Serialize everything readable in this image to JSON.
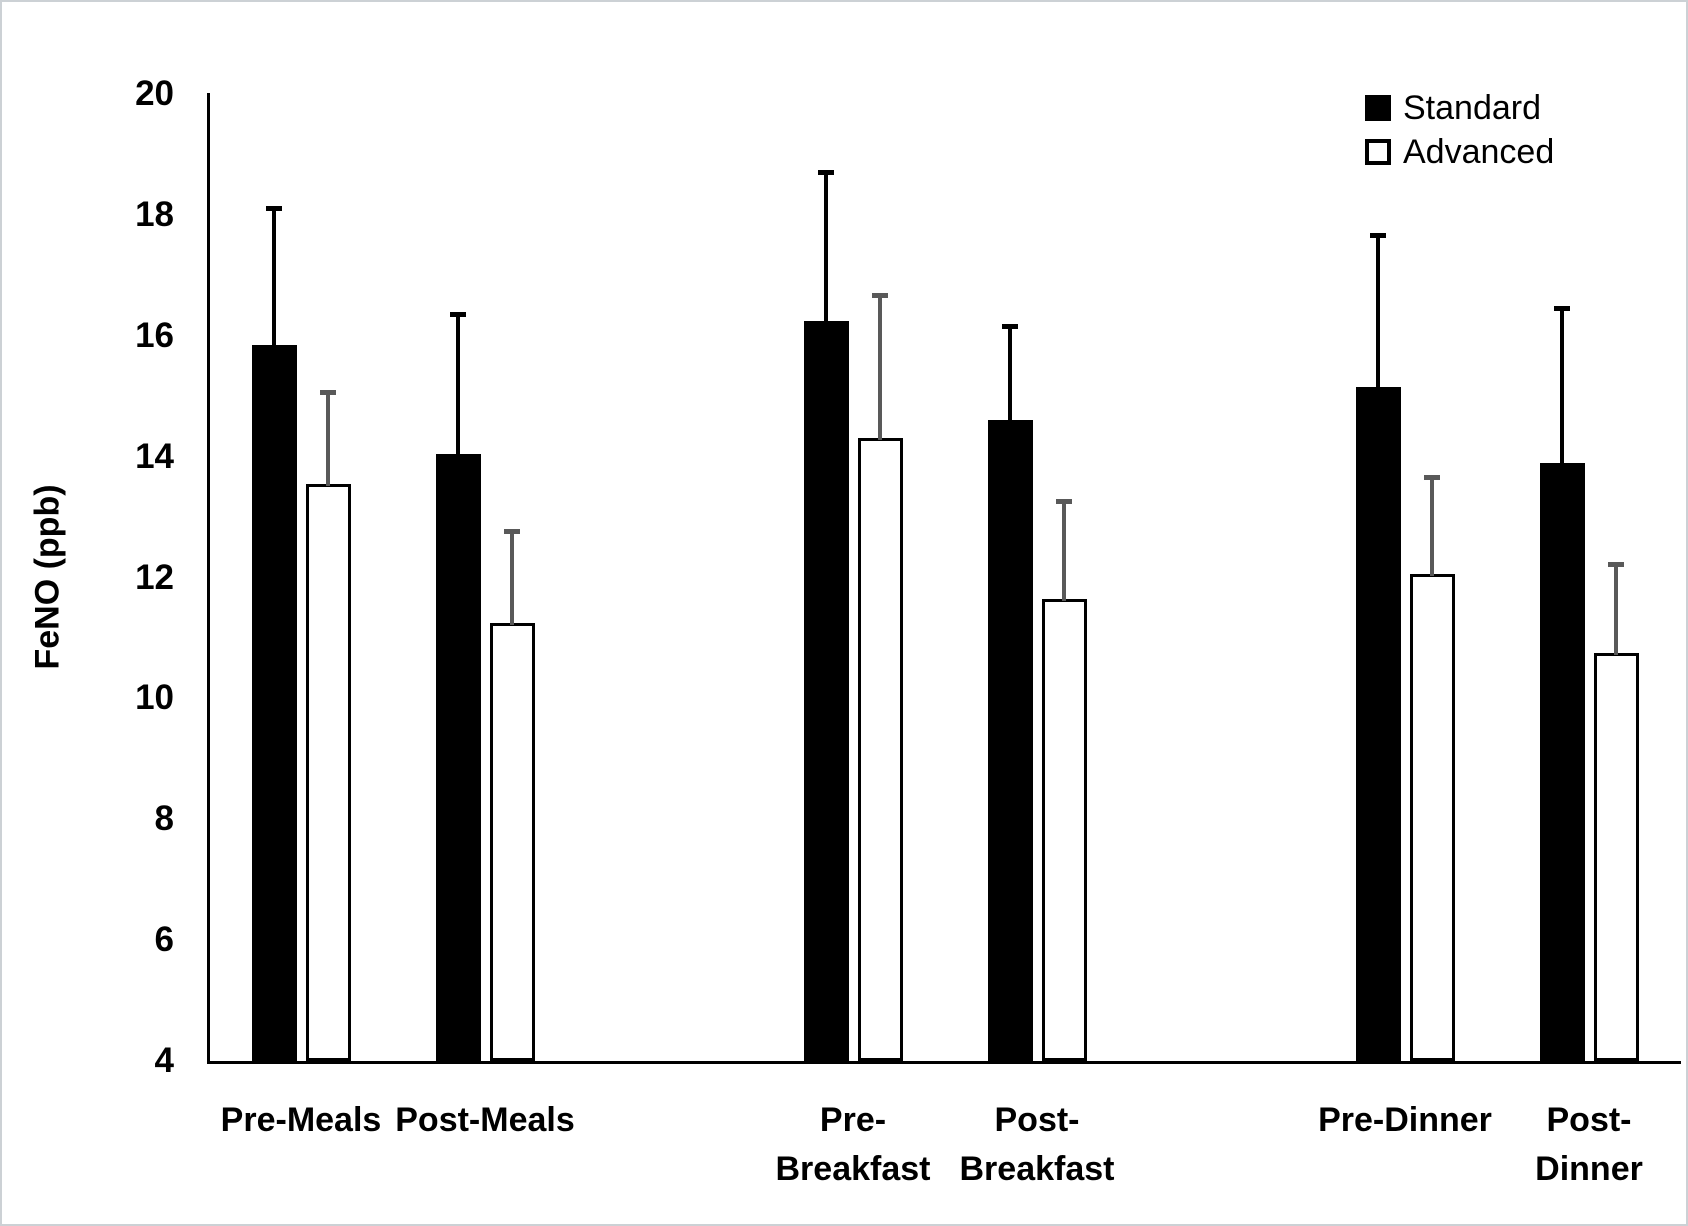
{
  "chart_data": {
    "type": "bar",
    "title": "",
    "xlabel": "",
    "ylabel": "FeNO (ppb)",
    "ylim": [
      4,
      20
    ],
    "yticks": [
      20,
      18,
      16,
      14,
      12,
      10,
      8,
      6,
      4
    ],
    "grid": false,
    "legend_position": "top-right",
    "categories": [
      "Pre-Meals",
      "Post-Meals",
      "Pre-Breakfast",
      "Post-Breakfast",
      "Pre-Dinner",
      "Post-Dinner"
    ],
    "category_label_lines": [
      [
        "Pre-Meals"
      ],
      [
        "Post-Meals"
      ],
      [
        "Pre-",
        "Breakfast"
      ],
      [
        "Post-",
        "Breakfast"
      ],
      [
        "Pre-Dinner"
      ],
      [
        "Post-",
        "Dinner"
      ]
    ],
    "series": [
      {
        "name": "Standard",
        "fill": "#000000",
        "outline": false,
        "error_color": "#000000",
        "values": [
          15.85,
          14.05,
          16.25,
          14.6,
          15.15,
          13.9
        ],
        "error_up": [
          2.3,
          2.35,
          2.5,
          1.6,
          2.55,
          2.6
        ]
      },
      {
        "name": "Advanced",
        "fill": "#ffffff",
        "outline": true,
        "error_color": "#595959",
        "values": [
          13.55,
          11.25,
          14.3,
          11.65,
          12.05,
          10.75
        ],
        "error_up": [
          1.55,
          1.55,
          2.4,
          1.65,
          1.65,
          1.5
        ]
      }
    ],
    "colors": {
      "axis": "#000000",
      "standard_fill": "#000000",
      "advanced_fill": "#ffffff",
      "advanced_error": "#595959",
      "frame": "#ccd1d5"
    }
  }
}
